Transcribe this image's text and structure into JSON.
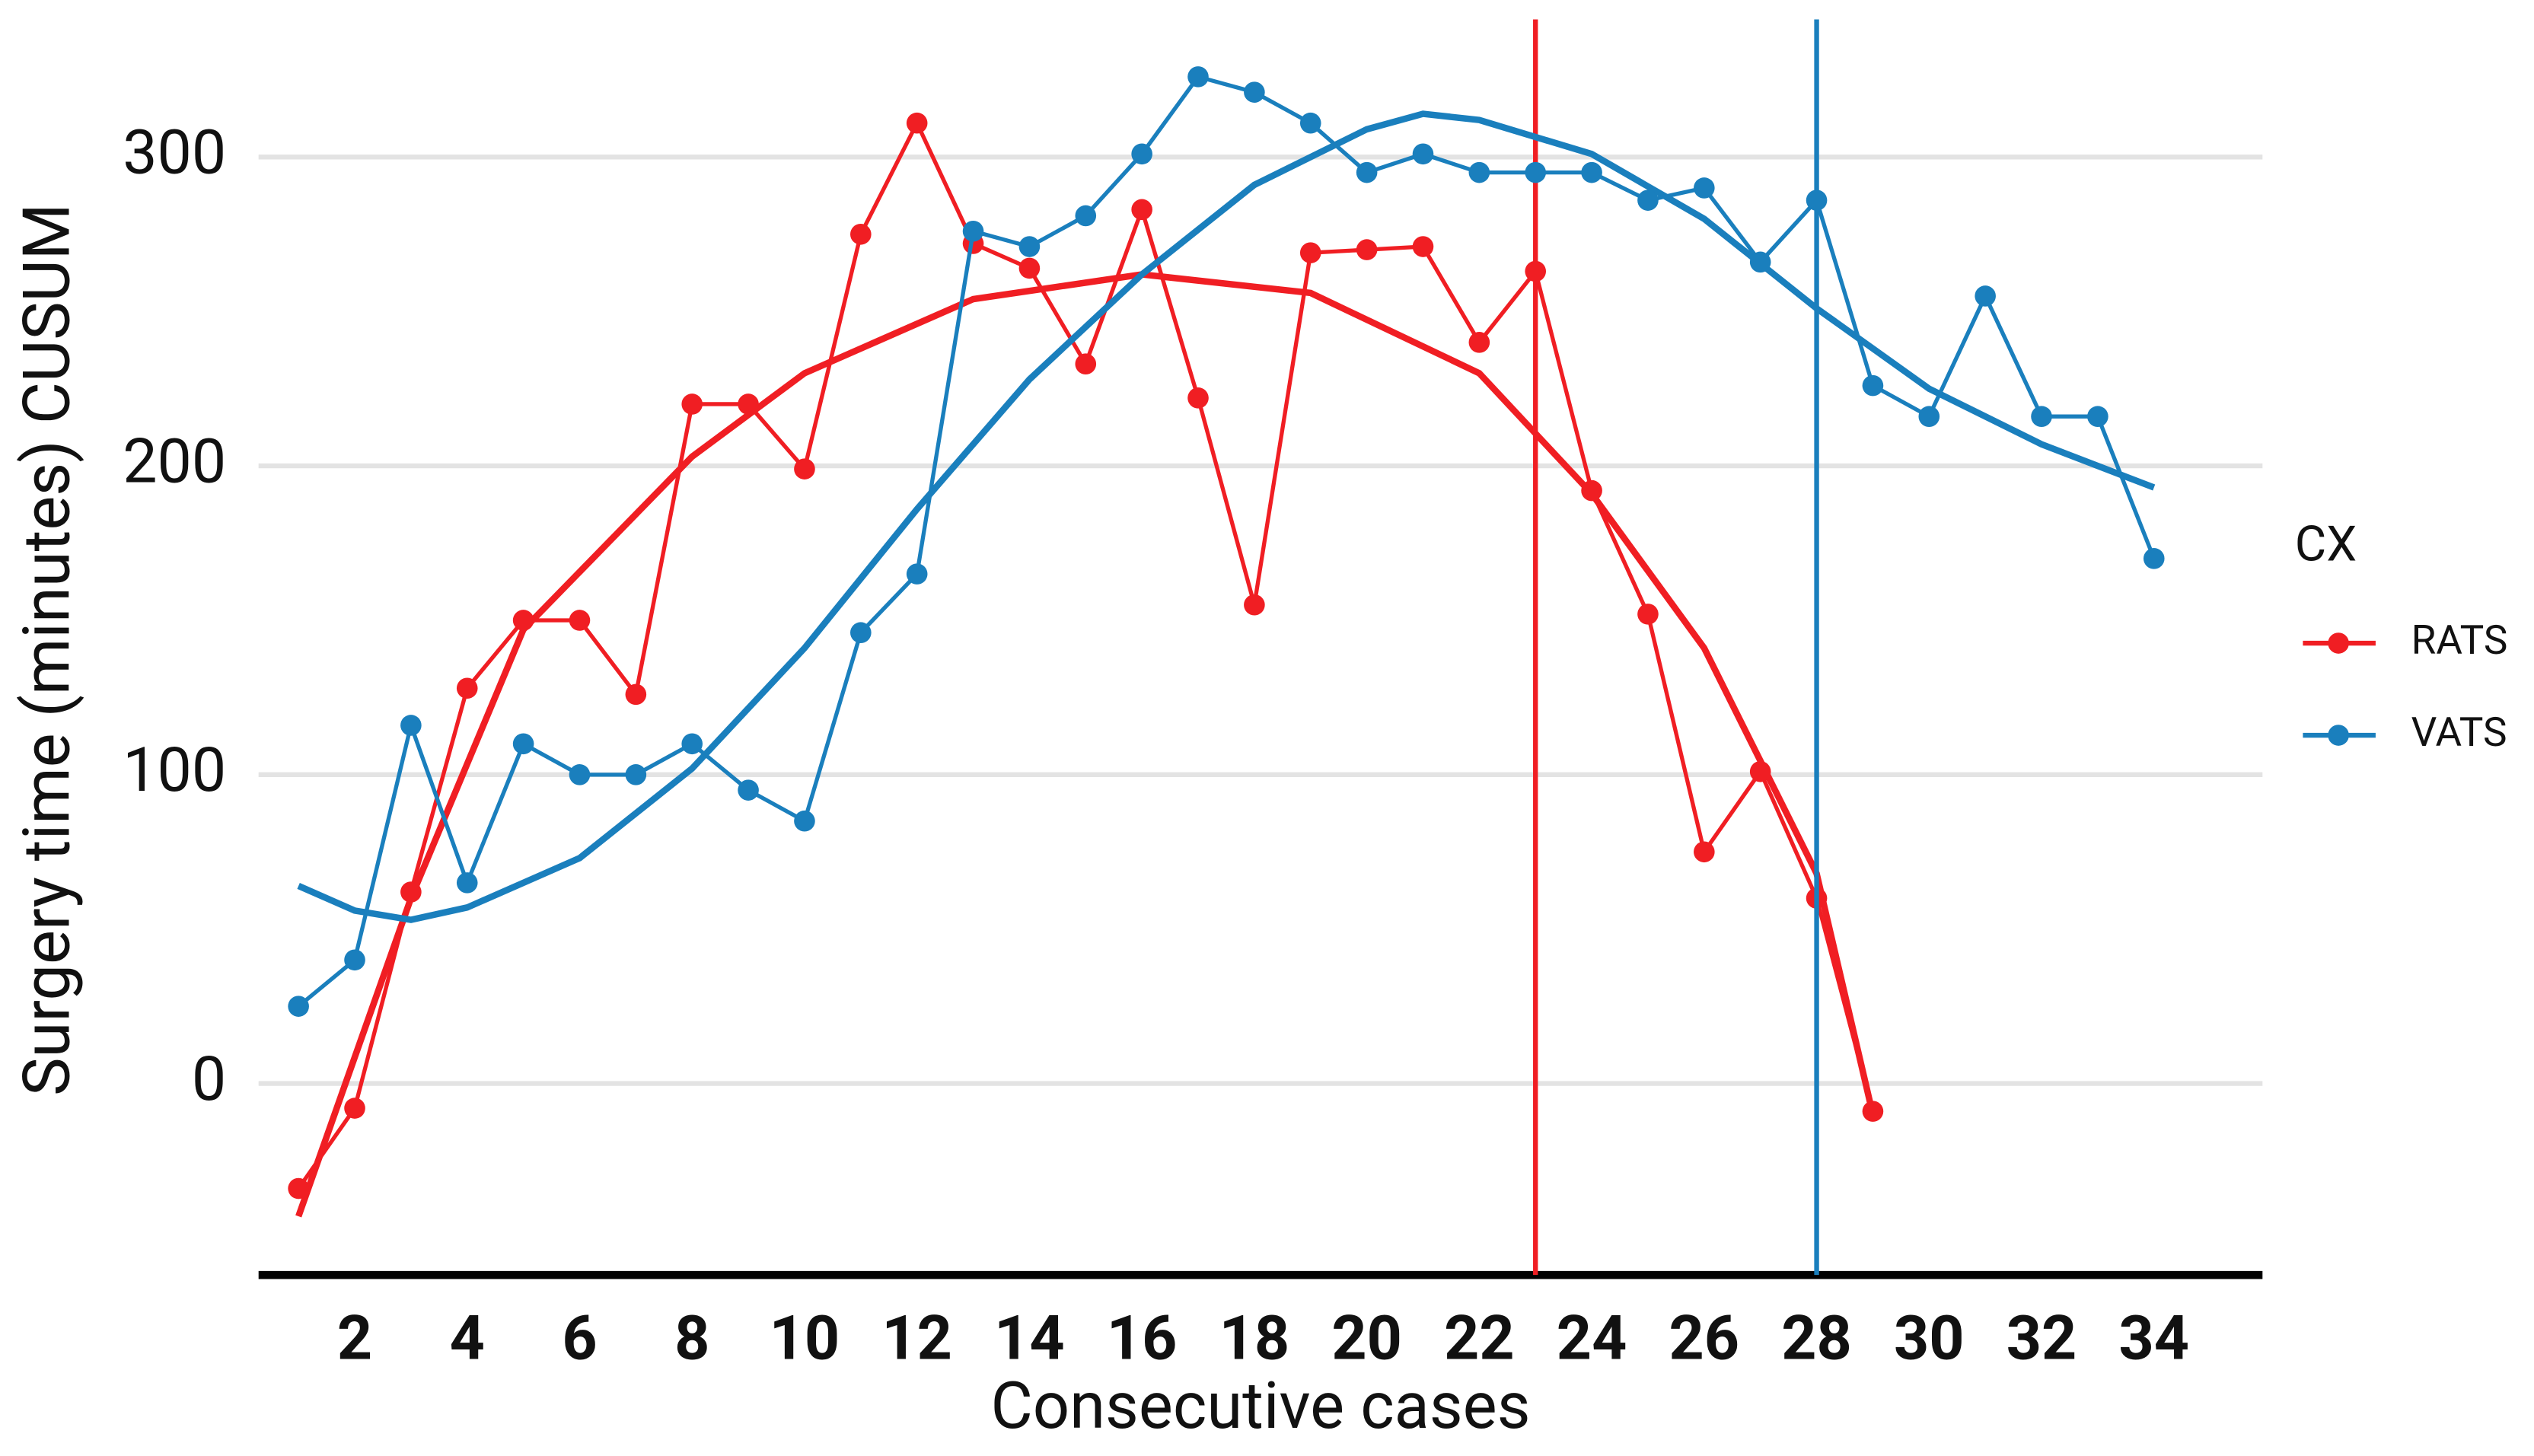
{
  "chart_data": {
    "type": "line",
    "x_label": "Consecutive cases",
    "y_label": "Surgery time (minutes) CUSUM",
    "legend_title": "CX",
    "legend_position": "right",
    "grid": true,
    "xlim": [
      0.29,
      35.93
    ],
    "ylim": [
      -62,
      343
    ],
    "xticks": [
      2,
      4,
      6,
      8,
      10,
      12,
      14,
      16,
      18,
      20,
      22,
      24,
      26,
      28,
      30,
      32,
      34
    ],
    "yticks": [
      0,
      100,
      200,
      300
    ],
    "series": [
      {
        "name": "RATS",
        "color": "#f01e23",
        "x": [
          1,
          2,
          3,
          4,
          5,
          6,
          7,
          8,
          9,
          10,
          11,
          12,
          13,
          14,
          15,
          16,
          17,
          18,
          19,
          20,
          21,
          22,
          23,
          24,
          25,
          26,
          27,
          28,
          29
        ],
        "values": [
          -34,
          -8,
          62,
          128,
          150,
          150,
          126,
          220,
          220,
          199,
          275,
          311,
          272,
          264,
          233,
          283,
          222,
          155,
          269,
          270,
          271,
          240,
          263,
          192,
          152,
          75,
          101,
          60,
          -9
        ],
        "trend": {
          "x": [
            1,
            3,
            5,
            8,
            10,
            13,
            16,
            19,
            22,
            24,
            26,
            28,
            29
          ],
          "values": [
            -43,
            60,
            147,
            203,
            230,
            254,
            262,
            256,
            230,
            191,
            141,
            68,
            -10
          ]
        },
        "vline": 23
      },
      {
        "name": "VATS",
        "color": "#1a7fbd",
        "x": [
          1,
          2,
          3,
          4,
          5,
          6,
          7,
          8,
          9,
          10,
          11,
          12,
          13,
          14,
          15,
          16,
          17,
          18,
          19,
          20,
          21,
          22,
          23,
          24,
          25,
          26,
          27,
          28,
          29,
          30,
          31,
          32,
          33,
          34
        ],
        "values": [
          25,
          40,
          116,
          65,
          110,
          100,
          100,
          110,
          95,
          85,
          146,
          165,
          276,
          271,
          281,
          301,
          326,
          321,
          311,
          295,
          301,
          295,
          295,
          295,
          286,
          290,
          266,
          286,
          226,
          216,
          255,
          216,
          216,
          170
        ],
        "trend": {
          "x": [
            1,
            2,
            3,
            4,
            6,
            8,
            10,
            12,
            14,
            16,
            18,
            20,
            21,
            22,
            24,
            26,
            28,
            30,
            32,
            34
          ],
          "values": [
            64,
            56,
            53,
            57,
            73,
            102,
            141,
            186,
            228,
            262,
            291,
            309,
            314,
            312,
            301,
            280,
            251,
            225,
            207,
            193
          ]
        },
        "vline": 28
      }
    ]
  }
}
